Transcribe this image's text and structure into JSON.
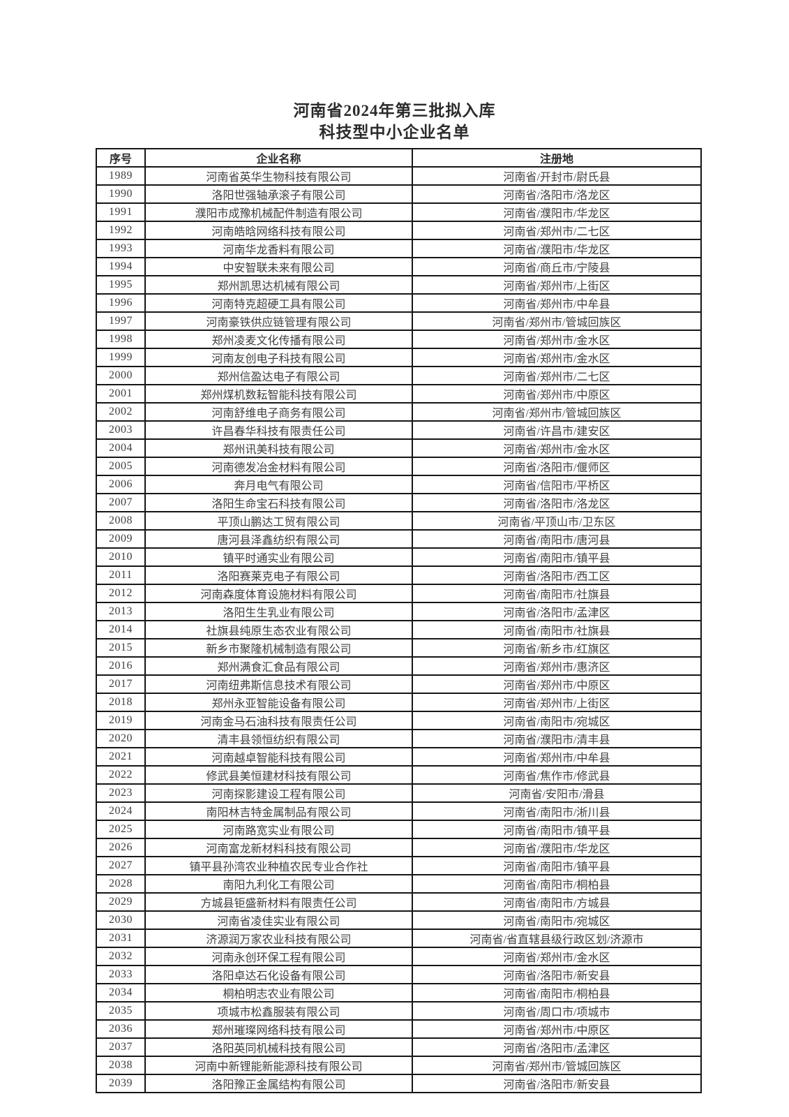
{
  "page": {
    "title_line1": "河南省2024年第三批拟入库",
    "title_line2": "科技型中小企业名单"
  },
  "colors": {
    "background": "#ffffff",
    "text": "#404040",
    "border": "#161616"
  },
  "table": {
    "columns": [
      "序号",
      "企业名称",
      "注册地"
    ],
    "rows": [
      [
        "1989",
        "河南省英华生物科技有限公司",
        "河南省/开封市/尉氏县"
      ],
      [
        "1990",
        "洛阳世强轴承滚子有限公司",
        "河南省/洛阳市/洛龙区"
      ],
      [
        "1991",
        "濮阳市成豫机械配件制造有限公司",
        "河南省/濮阳市/华龙区"
      ],
      [
        "1992",
        "河南皓晗网络科技有限公司",
        "河南省/郑州市/二七区"
      ],
      [
        "1993",
        "河南华龙香料有限公司",
        "河南省/濮阳市/华龙区"
      ],
      [
        "1994",
        "中安智联未来有限公司",
        "河南省/商丘市/宁陵县"
      ],
      [
        "1995",
        "郑州凯思达机械有限公司",
        "河南省/郑州市/上街区"
      ],
      [
        "1996",
        "河南特克超硬工具有限公司",
        "河南省/郑州市/中牟县"
      ],
      [
        "1997",
        "河南豪铁供应链管理有限公司",
        "河南省/郑州市/管城回族区"
      ],
      [
        "1998",
        "郑州凌麦文化传播有限公司",
        "河南省/郑州市/金水区"
      ],
      [
        "1999",
        "河南友创电子科技有限公司",
        "河南省/郑州市/金水区"
      ],
      [
        "2000",
        "郑州信盈达电子有限公司",
        "河南省/郑州市/二七区"
      ],
      [
        "2001",
        "郑州煤机数耘智能科技有限公司",
        "河南省/郑州市/中原区"
      ],
      [
        "2002",
        "河南舒维电子商务有限公司",
        "河南省/郑州市/管城回族区"
      ],
      [
        "2003",
        "许昌春华科技有限责任公司",
        "河南省/许昌市/建安区"
      ],
      [
        "2004",
        "郑州讯美科技有限公司",
        "河南省/郑州市/金水区"
      ],
      [
        "2005",
        "河南德发冶金材料有限公司",
        "河南省/洛阳市/偃师区"
      ],
      [
        "2006",
        "奔月电气有限公司",
        "河南省/信阳市/平桥区"
      ],
      [
        "2007",
        "洛阳生命宝石科技有限公司",
        "河南省/洛阳市/洛龙区"
      ],
      [
        "2008",
        "平顶山鹏达工贸有限公司",
        "河南省/平顶山市/卫东区"
      ],
      [
        "2009",
        "唐河县泽鑫纺织有限公司",
        "河南省/南阳市/唐河县"
      ],
      [
        "2010",
        "镇平时通实业有限公司",
        "河南省/南阳市/镇平县"
      ],
      [
        "2011",
        "洛阳赛莱克电子有限公司",
        "河南省/洛阳市/西工区"
      ],
      [
        "2012",
        "河南森度体育设施材料有限公司",
        "河南省/南阳市/社旗县"
      ],
      [
        "2013",
        "洛阳生生乳业有限公司",
        "河南省/洛阳市/孟津区"
      ],
      [
        "2014",
        "社旗县纯原生态农业有限公司",
        "河南省/南阳市/社旗县"
      ],
      [
        "2015",
        "新乡市聚隆机械制造有限公司",
        "河南省/新乡市/红旗区"
      ],
      [
        "2016",
        "郑州满食汇食品有限公司",
        "河南省/郑州市/惠济区"
      ],
      [
        "2017",
        "河南纽弗斯信息技术有限公司",
        "河南省/郑州市/中原区"
      ],
      [
        "2018",
        "郑州永亚智能设备有限公司",
        "河南省/郑州市/上街区"
      ],
      [
        "2019",
        "河南金马石油科技有限责任公司",
        "河南省/南阳市/宛城区"
      ],
      [
        "2020",
        "清丰县领恒纺织有限公司",
        "河南省/濮阳市/清丰县"
      ],
      [
        "2021",
        "河南越卓智能科技有限公司",
        "河南省/郑州市/中牟县"
      ],
      [
        "2022",
        "修武县美恒建材科技有限公司",
        "河南省/焦作市/修武县"
      ],
      [
        "2023",
        "河南探影建设工程有限公司",
        "河南省/安阳市/滑县"
      ],
      [
        "2024",
        "南阳林吉特金属制品有限公司",
        "河南省/南阳市/淅川县"
      ],
      [
        "2025",
        "河南路宽实业有限公司",
        "河南省/南阳市/镇平县"
      ],
      [
        "2026",
        "河南富龙新材料科技有限公司",
        "河南省/濮阳市/华龙区"
      ],
      [
        "2027",
        "镇平县孙湾农业种植农民专业合作社",
        "河南省/南阳市/镇平县"
      ],
      [
        "2028",
        "南阳九利化工有限公司",
        "河南省/南阳市/桐柏县"
      ],
      [
        "2029",
        "方城县钜盛新材料有限责任公司",
        "河南省/南阳市/方城县"
      ],
      [
        "2030",
        "河南省凌佳实业有限公司",
        "河南省/南阳市/宛城区"
      ],
      [
        "2031",
        "济源润万家农业科技有限公司",
        "河南省/省直辖县级行政区划/济源市"
      ],
      [
        "2032",
        "河南永创环保工程有限公司",
        "河南省/郑州市/金水区"
      ],
      [
        "2033",
        "洛阳卓达石化设备有限公司",
        "河南省/洛阳市/新安县"
      ],
      [
        "2034",
        "桐柏明志农业有限公司",
        "河南省/南阳市/桐柏县"
      ],
      [
        "2035",
        "项城市松鑫服装有限公司",
        "河南省/周口市/项城市"
      ],
      [
        "2036",
        "郑州璀璨网络科技有限公司",
        "河南省/郑州市/中原区"
      ],
      [
        "2037",
        "洛阳英同机械科技有限公司",
        "河南省/洛阳市/孟津区"
      ],
      [
        "2038",
        "河南中新锂能新能源科技有限公司",
        "河南省/郑州市/管城回族区"
      ],
      [
        "2039",
        "洛阳豫正金属结构有限公司",
        "河南省/洛阳市/新安县"
      ]
    ]
  }
}
